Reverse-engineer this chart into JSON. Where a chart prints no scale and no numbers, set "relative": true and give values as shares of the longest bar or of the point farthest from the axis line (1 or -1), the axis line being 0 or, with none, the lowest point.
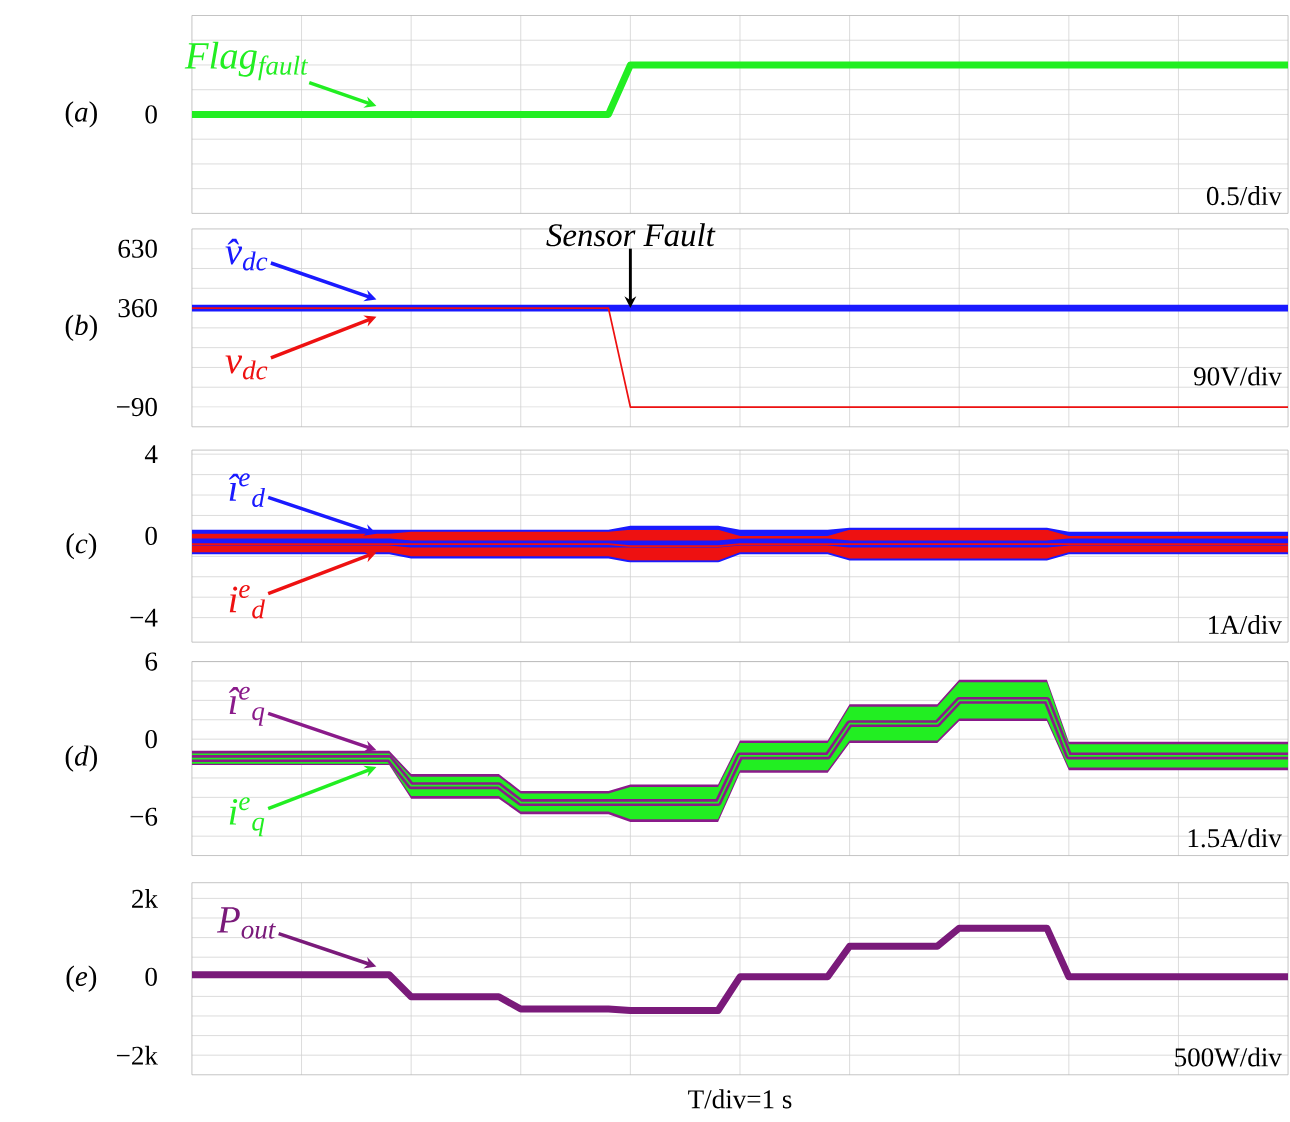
{
  "chart_data": [
    {
      "type": "line",
      "relative": true,
      "categories": [
        null,
        null,
        null,
        null,
        null,
        null,
        null,
        null,
        null,
        null,
        null,
        null,
        null,
        null,
        null,
        null,
        null,
        null,
        null,
        null,
        null,
        null,
        null,
        null,
        null,
        null,
        null,
        null,
        null,
        null,
        null,
        null,
        null,
        null,
        null,
        null,
        null,
        null,
        null,
        null,
        null,
        null,
        null,
        null,
        null,
        null,
        null,
        null,
        null,
        null,
        null
      ],
      "grid": true,
      "tick_labels": false,
      "series": [
        {
          "name": "Flag$_{fault}$",
          "color": "#22ee22",
          "values": [
            0,
            0,
            0,
            0,
            0,
            0,
            0,
            0,
            0,
            0,
            0,
            0,
            0,
            0,
            0,
            0,
            0,
            0,
            0,
            0,
            1,
            1,
            1,
            1,
            1,
            1,
            1,
            1,
            1,
            1,
            1,
            1,
            1,
            1,
            1,
            1,
            1,
            1,
            1,
            1,
            1,
            1,
            1,
            1,
            1,
            1,
            1,
            1,
            1,
            1,
            1
          ]
        }
      ],
      "annotations": [
        "(*a*)",
        "0",
        "0.5/div"
      ]
    },
    {
      "type": "line",
      "categories": [
        null,
        null,
        null,
        null,
        null,
        null,
        null,
        null,
        null,
        null,
        null,
        null,
        null,
        null,
        null,
        null,
        null,
        null,
        null,
        null,
        null,
        null,
        null,
        null,
        null,
        null,
        null,
        null,
        null,
        null,
        null,
        null,
        null,
        null,
        null,
        null,
        null,
        null,
        null,
        null,
        null,
        null,
        null,
        null,
        null,
        null,
        null,
        null,
        null,
        null,
        null
      ],
      "ylim": [
        -180,
        720
      ],
      "yticks": [
        {
          "value": -90,
          "label": "−90"
        },
        {
          "value": 0,
          "label": null
        },
        {
          "value": 90,
          "label": null
        },
        {
          "value": 180,
          "label": null
        },
        {
          "value": 270,
          "label": null
        },
        {
          "value": 360,
          "label": "360"
        },
        {
          "value": 450,
          "label": null
        },
        {
          "value": 540,
          "label": null
        },
        {
          "value": 630,
          "label": "630"
        }
      ],
      "grid": true,
      "tick_labels": "y",
      "series": [
        {
          "name": "v̂$_{dc}$",
          "color": "#1a1aff",
          "values": [
            360,
            360,
            360,
            360,
            360,
            360,
            360,
            360,
            360,
            360,
            360,
            360,
            360,
            360,
            360,
            360,
            360,
            360,
            360,
            360,
            360,
            360,
            360,
            360,
            360,
            360,
            360,
            360,
            360,
            360,
            360,
            360,
            360,
            360,
            360,
            360,
            360,
            360,
            360,
            360,
            360,
            360,
            360,
            360,
            360,
            360,
            360,
            360,
            360,
            360,
            360
          ]
        },
        {
          "name": "v$_{dc}$",
          "color": "#ee1111",
          "values": [
            360,
            360,
            360,
            360,
            360,
            360,
            360,
            360,
            360,
            360,
            360,
            360,
            360,
            360,
            360,
            360,
            360,
            360,
            360,
            360,
            -90,
            -90,
            -90,
            -90,
            -90,
            -90,
            -90,
            -90,
            -90,
            -90,
            -90,
            -90,
            -90,
            -90,
            -90,
            -90,
            -90,
            -90,
            -90,
            -90,
            -90,
            -90,
            -90,
            -90,
            -90,
            -90,
            -90,
            -90,
            -90,
            -90,
            -90
          ]
        }
      ],
      "annotations": [
        "(*b*)",
        {
          "text": "Sensor Fault",
          "y": 360
        },
        "90V/div"
      ]
    },
    {
      "type": "line",
      "categories": [
        null,
        null,
        null,
        null,
        null,
        null,
        null,
        null,
        null,
        null,
        null,
        null,
        null,
        null,
        null,
        null,
        null,
        null,
        null,
        null,
        null,
        null,
        null,
        null,
        null,
        null,
        null,
        null,
        null,
        null,
        null,
        null,
        null,
        null,
        null,
        null,
        null,
        null,
        null,
        null,
        null,
        null,
        null,
        null,
        null,
        null,
        null,
        null,
        null,
        null,
        null
      ],
      "ylim": [
        -5.2,
        4.2
      ],
      "yticks": [
        {
          "value": -4,
          "label": "−4"
        },
        {
          "value": -3,
          "label": null
        },
        {
          "value": -2,
          "label": null
        },
        {
          "value": -1,
          "label": null
        },
        {
          "value": 0,
          "label": "0"
        },
        {
          "value": 1,
          "label": null
        },
        {
          "value": 2,
          "label": null
        },
        {
          "value": 3,
          "label": null
        },
        {
          "value": 4,
          "label": "4"
        }
      ],
      "grid": true,
      "tick_labels": "y",
      "series": [
        {
          "name": "î$^{e}$$_{d}$",
          "color": "#1a1aff",
          "values": [
            -0.3,
            -0.3,
            -0.3,
            -0.3,
            -0.3,
            -0.3,
            -0.3,
            -0.3,
            -0.3,
            -0.3,
            -0.4,
            -0.4,
            -0.4,
            -0.4,
            -0.4,
            -0.4,
            -0.4,
            -0.4,
            -0.4,
            -0.4,
            -0.4,
            -0.4,
            -0.4,
            -0.4,
            -0.4,
            -0.3,
            -0.3,
            -0.3,
            -0.3,
            -0.3,
            -0.4,
            -0.4,
            -0.4,
            -0.4,
            -0.4,
            -0.4,
            -0.4,
            -0.4,
            -0.4,
            -0.4,
            -0.3,
            -0.3,
            -0.3,
            -0.3,
            -0.3,
            -0.3,
            -0.3,
            -0.3,
            -0.3,
            -0.3,
            -0.3
          ],
          "upper": [
            0.3,
            0.3,
            0.3,
            0.3,
            0.3,
            0.3,
            0.3,
            0.3,
            0.3,
            0.3,
            0.3,
            0.3,
            0.3,
            0.3,
            0.3,
            0.3,
            0.3,
            0.3,
            0.3,
            0.3,
            0.5,
            0.5,
            0.5,
            0.5,
            0.5,
            0.3,
            0.3,
            0.3,
            0.3,
            0.3,
            0.4,
            0.4,
            0.4,
            0.4,
            0.4,
            0.4,
            0.4,
            0.4,
            0.4,
            0.4,
            0.2,
            0.2,
            0.2,
            0.2,
            0.2,
            0.2,
            0.2,
            0.2,
            0.2,
            0.2,
            0.2
          ],
          "lower": [
            -0.9,
            -0.9,
            -0.9,
            -0.9,
            -0.9,
            -0.9,
            -0.9,
            -0.9,
            -0.9,
            -0.9,
            -1.1,
            -1.1,
            -1.1,
            -1.1,
            -1.1,
            -1.1,
            -1.1,
            -1.1,
            -1.1,
            -1.1,
            -1.3,
            -1.3,
            -1.3,
            -1.3,
            -1.3,
            -0.9,
            -0.9,
            -0.9,
            -0.9,
            -0.9,
            -1.2,
            -1.2,
            -1.2,
            -1.2,
            -1.2,
            -1.2,
            -1.2,
            -1.2,
            -1.2,
            -1.2,
            -0.9,
            -0.9,
            -0.9,
            -0.9,
            -0.9,
            -0.9,
            -0.9,
            -0.9,
            -0.9,
            -0.9,
            -0.9
          ]
        },
        {
          "name": "i$^{e}$$_{d}$",
          "color": "#ee1111",
          "values": [
            -0.4,
            -0.4,
            -0.4,
            -0.4,
            -0.4,
            -0.4,
            -0.4,
            -0.4,
            -0.4,
            -0.4,
            -0.4,
            -0.4,
            -0.4,
            -0.4,
            -0.4,
            -0.4,
            -0.4,
            -0.4,
            -0.4,
            -0.4,
            -0.5,
            -0.5,
            -0.5,
            -0.5,
            -0.5,
            -0.4,
            -0.4,
            -0.4,
            -0.4,
            -0.4,
            -0.4,
            -0.4,
            -0.4,
            -0.4,
            -0.4,
            -0.4,
            -0.4,
            -0.4,
            -0.4,
            -0.4,
            -0.4,
            -0.4,
            -0.4,
            -0.4,
            -0.4,
            -0.4,
            -0.4,
            -0.4,
            -0.4,
            -0.4,
            -0.4
          ],
          "upper": [
            0.1,
            0.1,
            0.1,
            0.1,
            0.1,
            0.1,
            0.1,
            0.1,
            0.1,
            0.1,
            0.2,
            0.2,
            0.2,
            0.2,
            0.2,
            0.2,
            0.2,
            0.2,
            0.2,
            0.2,
            0.3,
            0.3,
            0.3,
            0.3,
            0.3,
            0.0,
            0.0,
            0.0,
            0.0,
            0.0,
            0.3,
            0.3,
            0.3,
            0.3,
            0.3,
            0.3,
            0.3,
            0.3,
            0.3,
            0.3,
            0.0,
            0.0,
            0.0,
            0.0,
            0.0,
            0.0,
            0.0,
            0.0,
            0.0,
            0.0,
            0.0
          ],
          "lower": [
            -0.8,
            -0.8,
            -0.8,
            -0.8,
            -0.8,
            -0.8,
            -0.8,
            -0.8,
            -0.8,
            -0.8,
            -1.0,
            -1.0,
            -1.0,
            -1.0,
            -1.0,
            -1.0,
            -1.0,
            -1.0,
            -1.0,
            -1.0,
            -1.2,
            -1.2,
            -1.2,
            -1.2,
            -1.2,
            -0.8,
            -0.8,
            -0.8,
            -0.8,
            -0.8,
            -1.1,
            -1.1,
            -1.1,
            -1.1,
            -1.1,
            -1.1,
            -1.1,
            -1.1,
            -1.1,
            -1.1,
            -0.8,
            -0.8,
            -0.8,
            -0.8,
            -0.8,
            -0.8,
            -0.8,
            -0.8,
            -0.8,
            -0.8,
            -0.8
          ]
        }
      ],
      "annotations": [
        "(*c*)",
        "1A/div"
      ]
    },
    {
      "type": "line",
      "categories": [
        null,
        null,
        null,
        null,
        null,
        null,
        null,
        null,
        null,
        null,
        null,
        null,
        null,
        null,
        null,
        null,
        null,
        null,
        null,
        null,
        null,
        null,
        null,
        null,
        null,
        null,
        null,
        null,
        null,
        null,
        null,
        null,
        null,
        null,
        null,
        null,
        null,
        null,
        null,
        null,
        null,
        null,
        null,
        null,
        null,
        null,
        null,
        null,
        null,
        null,
        null
      ],
      "ylim": [
        -9,
        6
      ],
      "yticks": [
        {
          "value": -7.5,
          "label": null
        },
        {
          "value": -6,
          "label": "−6"
        },
        {
          "value": -4.5,
          "label": null
        },
        {
          "value": -3,
          "label": null
        },
        {
          "value": -1.5,
          "label": null
        },
        {
          "value": 0,
          "label": "0"
        },
        {
          "value": 1.5,
          "label": null
        },
        {
          "value": 3,
          "label": null
        },
        {
          "value": 4.5,
          "label": null
        },
        {
          "value": 6,
          "label": "6"
        }
      ],
      "grid": true,
      "tick_labels": "y",
      "series": [
        {
          "name": "î$^{e}$$_{q}$",
          "color": "#8a1a8a",
          "values": [
            -1.5,
            -1.5,
            -1.5,
            -1.5,
            -1.5,
            -1.5,
            -1.5,
            -1.5,
            -1.5,
            -1.5,
            -3.6,
            -3.6,
            -3.6,
            -3.6,
            -3.6,
            -4.9,
            -4.9,
            -4.9,
            -4.9,
            -4.9,
            -4.9,
            -4.9,
            -4.9,
            -4.9,
            -4.9,
            -1.3,
            -1.3,
            -1.3,
            -1.3,
            -1.3,
            1.2,
            1.2,
            1.2,
            1.2,
            1.2,
            3.0,
            3.0,
            3.0,
            3.0,
            3.0,
            -1.3,
            -1.3,
            -1.3,
            -1.3,
            -1.3,
            -1.3,
            -1.3,
            -1.3,
            -1.3,
            -1.3,
            -1.3
          ],
          "upper": [
            -0.9,
            -0.9,
            -0.9,
            -0.9,
            -0.9,
            -0.9,
            -0.9,
            -0.9,
            -0.9,
            -0.9,
            -2.7,
            -2.7,
            -2.7,
            -2.7,
            -2.7,
            -4.0,
            -4.0,
            -4.0,
            -4.0,
            -4.0,
            -3.5,
            -3.5,
            -3.5,
            -3.5,
            -3.5,
            -0.1,
            -0.1,
            -0.1,
            -0.1,
            -0.1,
            2.7,
            2.7,
            2.7,
            2.7,
            2.7,
            4.6,
            4.6,
            4.6,
            4.6,
            4.6,
            -0.2,
            -0.2,
            -0.2,
            -0.2,
            -0.2,
            -0.2,
            -0.2,
            -0.2,
            -0.2,
            -0.2,
            -0.2
          ],
          "lower": [
            -2.0,
            -2.0,
            -2.0,
            -2.0,
            -2.0,
            -2.0,
            -2.0,
            -2.0,
            -2.0,
            -2.0,
            -4.6,
            -4.6,
            -4.6,
            -4.6,
            -4.6,
            -5.8,
            -5.8,
            -5.8,
            -5.8,
            -5.8,
            -6.4,
            -6.4,
            -6.4,
            -6.4,
            -6.4,
            -2.6,
            -2.6,
            -2.6,
            -2.6,
            -2.6,
            -0.3,
            -0.3,
            -0.3,
            -0.3,
            -0.3,
            1.4,
            1.4,
            1.4,
            1.4,
            1.4,
            -2.4,
            -2.4,
            -2.4,
            -2.4,
            -2.4,
            -2.4,
            -2.4,
            -2.4,
            -2.4,
            -2.4,
            -2.4
          ]
        },
        {
          "name": "i$^{e}$$_{q}$",
          "color": "#22ee22",
          "values": [
            -1.5,
            -1.5,
            -1.5,
            -1.5,
            -1.5,
            -1.5,
            -1.5,
            -1.5,
            -1.5,
            -1.5,
            -3.6,
            -3.6,
            -3.6,
            -3.6,
            -3.6,
            -4.9,
            -4.9,
            -4.9,
            -4.9,
            -4.9,
            -4.9,
            -4.9,
            -4.9,
            -4.9,
            -4.9,
            -1.3,
            -1.3,
            -1.3,
            -1.3,
            -1.3,
            1.2,
            1.2,
            1.2,
            1.2,
            1.2,
            3.0,
            3.0,
            3.0,
            3.0,
            3.0,
            -1.3,
            -1.3,
            -1.3,
            -1.3,
            -1.3,
            -1.3,
            -1.3,
            -1.3,
            -1.3,
            -1.3,
            -1.3
          ],
          "upper": [
            -1.1,
            -1.1,
            -1.1,
            -1.1,
            -1.1,
            -1.1,
            -1.1,
            -1.1,
            -1.1,
            -1.1,
            -2.9,
            -2.9,
            -2.9,
            -2.9,
            -2.9,
            -4.2,
            -4.2,
            -4.2,
            -4.2,
            -4.2,
            -3.7,
            -3.7,
            -3.7,
            -3.7,
            -3.7,
            -0.3,
            -0.3,
            -0.3,
            -0.3,
            -0.3,
            2.5,
            2.5,
            2.5,
            2.5,
            2.5,
            4.4,
            4.4,
            4.4,
            4.4,
            4.4,
            -0.4,
            -0.4,
            -0.4,
            -0.4,
            -0.4,
            -0.4,
            -0.4,
            -0.4,
            -0.4,
            -0.4,
            -0.4
          ],
          "lower": [
            -1.9,
            -1.9,
            -1.9,
            -1.9,
            -1.9,
            -1.9,
            -1.9,
            -1.9,
            -1.9,
            -1.9,
            -4.4,
            -4.4,
            -4.4,
            -4.4,
            -4.4,
            -5.6,
            -5.6,
            -5.6,
            -5.6,
            -5.6,
            -6.2,
            -6.2,
            -6.2,
            -6.2,
            -6.2,
            -2.4,
            -2.4,
            -2.4,
            -2.4,
            -2.4,
            -0.1,
            -0.1,
            -0.1,
            -0.1,
            -0.1,
            1.6,
            1.6,
            1.6,
            1.6,
            1.6,
            -2.2,
            -2.2,
            -2.2,
            -2.2,
            -2.2,
            -2.2,
            -2.2,
            -2.2,
            -2.2,
            -2.2,
            -2.2
          ]
        }
      ],
      "annotations": [
        "(*d*)",
        "1.5A/div"
      ]
    },
    {
      "type": "line",
      "categories": [
        null,
        null,
        null,
        null,
        null,
        null,
        null,
        null,
        null,
        null,
        null,
        null,
        null,
        null,
        null,
        null,
        null,
        null,
        null,
        null,
        null,
        null,
        null,
        null,
        null,
        null,
        null,
        null,
        null,
        null,
        null,
        null,
        null,
        null,
        null,
        null,
        null,
        null,
        null,
        null,
        null,
        null,
        null,
        null,
        null,
        null,
        null,
        null,
        null,
        null,
        null
      ],
      "ylim": [
        -2500,
        2400
      ],
      "yticks": [
        {
          "value": -2000,
          "label": "−2k"
        },
        {
          "value": -1500,
          "label": null
        },
        {
          "value": -1000,
          "label": null
        },
        {
          "value": -500,
          "label": null
        },
        {
          "value": 0,
          "label": "0"
        },
        {
          "value": 500,
          "label": null
        },
        {
          "value": 1000,
          "label": null
        },
        {
          "value": 1500,
          "label": null
        },
        {
          "value": 2000,
          "label": "2k"
        }
      ],
      "grid": true,
      "tick_labels": "y",
      "series": [
        {
          "name": "P$_{out}$",
          "color": "#7a1a7a",
          "values": [
            50,
            50,
            50,
            50,
            50,
            50,
            50,
            50,
            50,
            50,
            -510,
            -510,
            -510,
            -510,
            -510,
            -820,
            -820,
            -820,
            -820,
            -820,
            -860,
            -860,
            -860,
            -860,
            -860,
            0,
            0,
            0,
            0,
            0,
            780,
            780,
            780,
            780,
            780,
            1240,
            1240,
            1240,
            1240,
            1240,
            0,
            0,
            0,
            0,
            0,
            0,
            0,
            0,
            0,
            0,
            0
          ]
        }
      ],
      "annotations": [
        "(*e*)",
        "500W/div"
      ],
      "xlabel": "T/div=1 s"
    }
  ]
}
